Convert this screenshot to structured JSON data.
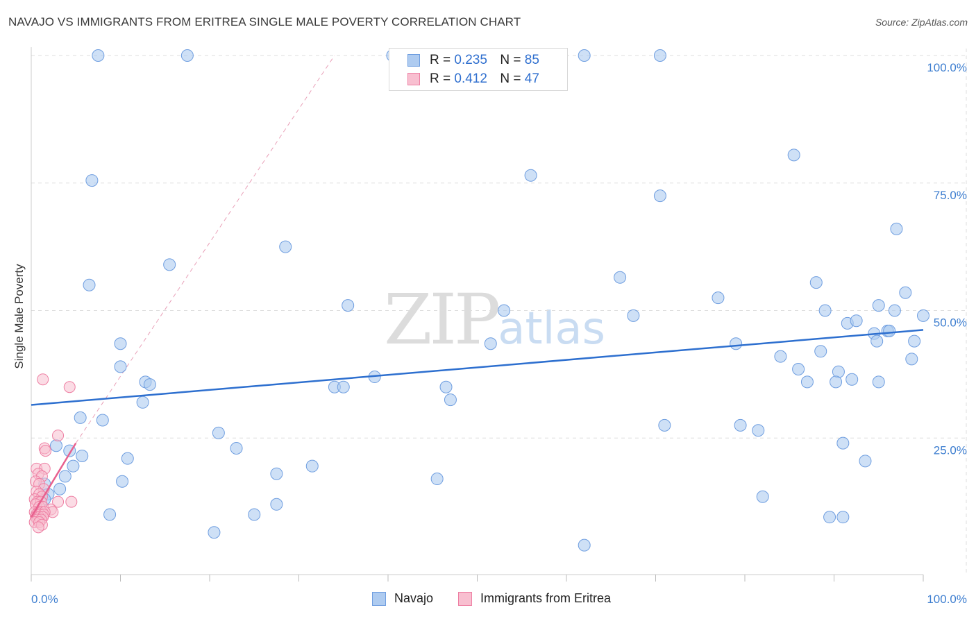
{
  "chart_data": {
    "type": "scatter",
    "title": "NAVAJO VS IMMIGRANTS FROM ERITREA SINGLE MALE POVERTY CORRELATION CHART",
    "source": "Source: ZipAtlas.com",
    "ylabel": "Single Male Poverty",
    "xlabel": "",
    "xlim": [
      0,
      100
    ],
    "ylim": [
      0,
      100
    ],
    "x_ticks": [
      "0.0%",
      "100.0%"
    ],
    "y_ticks": [
      {
        "value": 25,
        "label": "25.0%"
      },
      {
        "value": 50,
        "label": "50.0%"
      },
      {
        "value": 75,
        "label": "75.0%"
      },
      {
        "value": 100,
        "label": "100.0%"
      }
    ],
    "grid": true,
    "watermark": {
      "zip": "ZIP",
      "atlas": "atlas"
    },
    "legend": {
      "r_label": "R =",
      "n_label": "N =",
      "entries": [
        {
          "series": "Navajo",
          "r": "0.235",
          "n": "85"
        },
        {
          "series": "Immigrants from Eritrea",
          "r": "0.412",
          "n": "47"
        }
      ]
    },
    "colors": {
      "navajo_fill": "#aecbf0",
      "navajo_stroke": "#6f9ee0",
      "navajo_line": "#2d6fcf",
      "eritrea_fill": "#f8bfd0",
      "eritrea_stroke": "#ee7fa3",
      "eritrea_line": "#e8608e",
      "tick": "#3f7fd0",
      "grid": "#dddddd"
    },
    "series": [
      {
        "name": "Navajo",
        "trend": {
          "x0": 0,
          "y0": 31.5,
          "x1": 100,
          "y1": 46.2
        },
        "points": [
          [
            7.5,
            100
          ],
          [
            17.5,
            100
          ],
          [
            40.5,
            100
          ],
          [
            62,
            100
          ],
          [
            70.5,
            100
          ],
          [
            85.5,
            80.5
          ],
          [
            6.8,
            75.5
          ],
          [
            56,
            76.5
          ],
          [
            70.5,
            72.5
          ],
          [
            97,
            66
          ],
          [
            28.5,
            62.5
          ],
          [
            15.5,
            59
          ],
          [
            6.5,
            55
          ],
          [
            66,
            56.5
          ],
          [
            88,
            55.5
          ],
          [
            98,
            53.5
          ],
          [
            77,
            52.5
          ],
          [
            35.5,
            51
          ],
          [
            53,
            50
          ],
          [
            67.5,
            49
          ],
          [
            89,
            50
          ],
          [
            95,
            51
          ],
          [
            96.8,
            50
          ],
          [
            100,
            49
          ],
          [
            91.5,
            47.5
          ],
          [
            92.5,
            48
          ],
          [
            94.5,
            45.5
          ],
          [
            94.8,
            44
          ],
          [
            96,
            46
          ],
          [
            96.2,
            46
          ],
          [
            99,
            44
          ],
          [
            51.5,
            43.5
          ],
          [
            79,
            43.5
          ],
          [
            88.5,
            42
          ],
          [
            98.7,
            40.5
          ],
          [
            10,
            43.5
          ],
          [
            84,
            41
          ],
          [
            86,
            38.5
          ],
          [
            10,
            39
          ],
          [
            90.5,
            38
          ],
          [
            38.5,
            37
          ],
          [
            12.8,
            36
          ],
          [
            13.3,
            35.5
          ],
          [
            34,
            35
          ],
          [
            35,
            35
          ],
          [
            87,
            36
          ],
          [
            90.2,
            36
          ],
          [
            92,
            36.5
          ],
          [
            95,
            36
          ],
          [
            46.5,
            35
          ],
          [
            47,
            32.5
          ],
          [
            12.5,
            32
          ],
          [
            5.5,
            29
          ],
          [
            8,
            28.5
          ],
          [
            71,
            27.5
          ],
          [
            79.5,
            27.5
          ],
          [
            81.5,
            26.5
          ],
          [
            21,
            26
          ],
          [
            23,
            23
          ],
          [
            2.8,
            23.5
          ],
          [
            4.3,
            22.5
          ],
          [
            5.7,
            21.5
          ],
          [
            91,
            24
          ],
          [
            10.8,
            21
          ],
          [
            4.7,
            19.5
          ],
          [
            31.5,
            19.5
          ],
          [
            27.5,
            18
          ],
          [
            93.5,
            20.5
          ],
          [
            3.8,
            17.5
          ],
          [
            45.5,
            17
          ],
          [
            10.2,
            16.5
          ],
          [
            1.5,
            16
          ],
          [
            3.2,
            15
          ],
          [
            1.9,
            14
          ],
          [
            1.5,
            13
          ],
          [
            82,
            13.5
          ],
          [
            27.5,
            12
          ],
          [
            8.8,
            10
          ],
          [
            25,
            10
          ],
          [
            89.5,
            9.5
          ],
          [
            91,
            9.5
          ],
          [
            20.5,
            6.5
          ],
          [
            62,
            4
          ]
        ]
      },
      {
        "name": "Immigrants from Eritrea",
        "trend": {
          "x0": 0,
          "y0": 9.5,
          "x1": 5.0,
          "y1": 24.0
        },
        "trend_extended": {
          "x0": 5.0,
          "y0": 24.0,
          "x1": 34,
          "y1": 100
        },
        "points": [
          [
            1.3,
            36.5
          ],
          [
            4.3,
            35
          ],
          [
            3,
            25.5
          ],
          [
            1.5,
            23
          ],
          [
            1.6,
            22.5
          ],
          [
            0.6,
            19
          ],
          [
            1.5,
            19
          ],
          [
            0.8,
            18
          ],
          [
            1.2,
            17.5
          ],
          [
            0.5,
            16.5
          ],
          [
            0.9,
            16
          ],
          [
            1.4,
            15
          ],
          [
            0.6,
            14.5
          ],
          [
            0.9,
            14
          ],
          [
            1.2,
            13.5
          ],
          [
            0.4,
            13
          ],
          [
            0.7,
            12.5
          ],
          [
            1.1,
            12.5
          ],
          [
            3,
            12.5
          ],
          [
            4.5,
            12.5
          ],
          [
            0.5,
            12
          ],
          [
            0.9,
            11.5
          ],
          [
            1.3,
            11.5
          ],
          [
            2.2,
            11
          ],
          [
            2.4,
            10.5
          ],
          [
            0.4,
            10.5
          ],
          [
            0.8,
            10.5
          ],
          [
            1.2,
            10.5
          ],
          [
            1.5,
            10.5
          ],
          [
            0.6,
            10
          ],
          [
            1.0,
            10
          ],
          [
            1.4,
            10
          ],
          [
            0.5,
            9.5
          ],
          [
            0.9,
            9.5
          ],
          [
            1.3,
            9.5
          ],
          [
            0.7,
            9
          ],
          [
            1.1,
            9
          ],
          [
            0.4,
            8.5
          ],
          [
            0.9,
            8.5
          ],
          [
            1.2,
            8
          ],
          [
            0.8,
            7.5
          ]
        ]
      }
    ]
  }
}
